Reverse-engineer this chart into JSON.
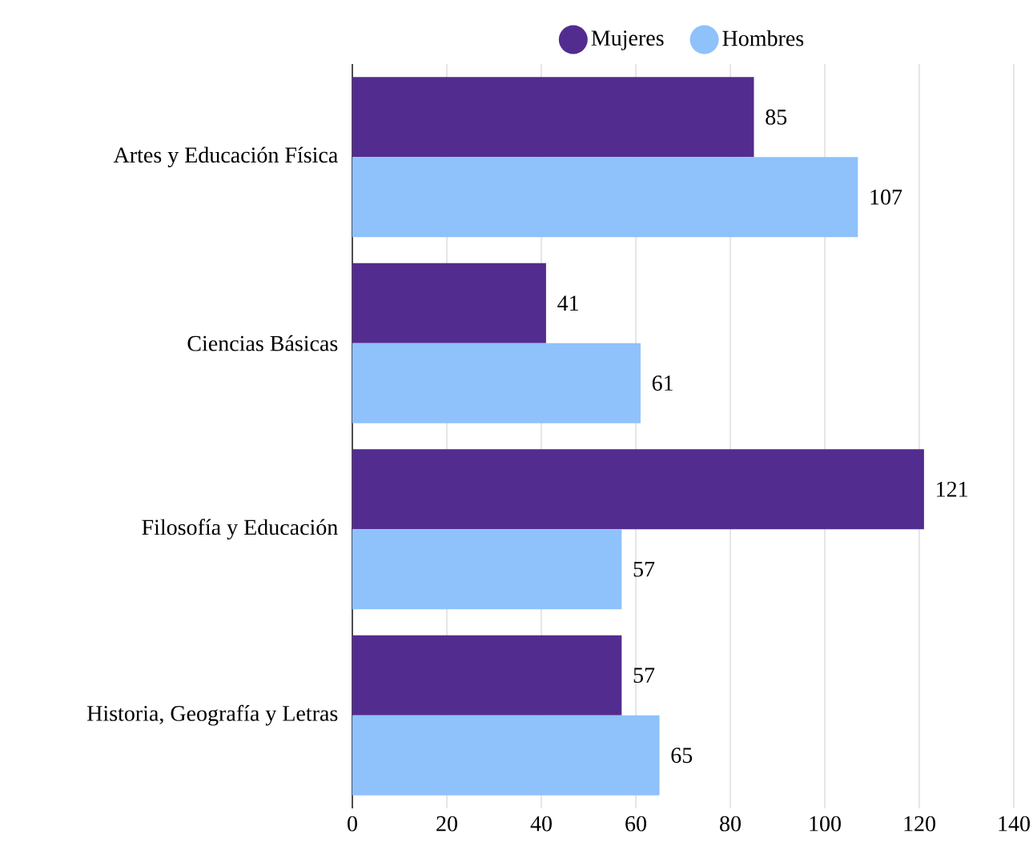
{
  "chart_data": {
    "type": "bar",
    "orientation": "horizontal",
    "categories": [
      "Artes y Educación Física",
      "Ciencias Básicas",
      "Filosofía y Educación",
      "Historia, Geografía y Letras"
    ],
    "series": [
      {
        "name": "Mujeres",
        "color": "#532c8f",
        "values": [
          85,
          41,
          121,
          57
        ]
      },
      {
        "name": "Hombres",
        "color": "#8fc1fb",
        "values": [
          107,
          61,
          57,
          65
        ]
      }
    ],
    "xlim": [
      0,
      140
    ],
    "xticks": [
      0,
      20,
      40,
      60,
      80,
      100,
      120,
      140
    ],
    "grid": "x",
    "legend": "top",
    "data_labels": true
  }
}
